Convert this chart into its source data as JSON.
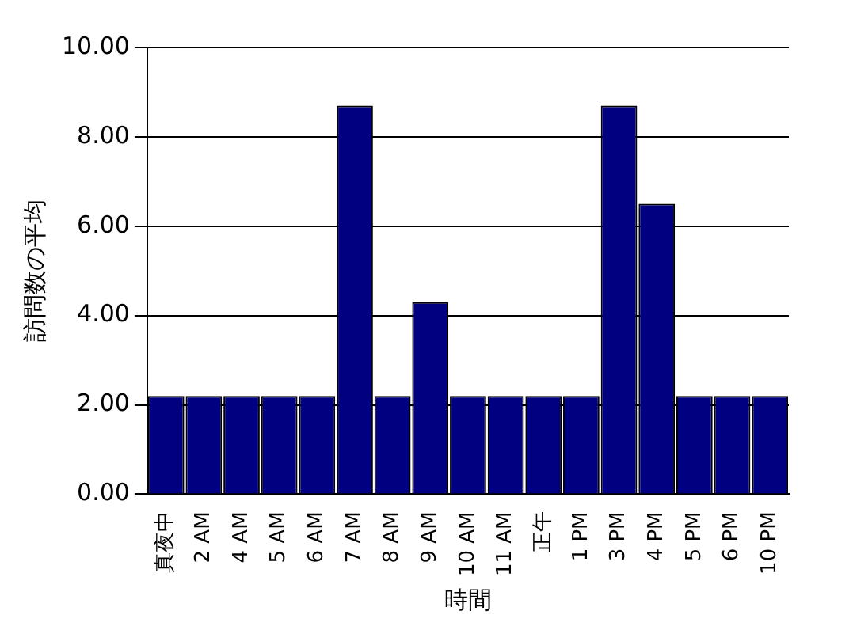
{
  "chart_data": {
    "type": "bar",
    "xlabel": "時間",
    "ylabel": "訪問数の平均",
    "categories": [
      "真夜中",
      "2 AM",
      "4 AM",
      "5 AM",
      "6 AM",
      "7 AM",
      "8 AM",
      "9 AM",
      "10 AM",
      "11 AM",
      "正午",
      "1 PM",
      "3 PM",
      "4 PM",
      "5 PM",
      "6 PM",
      "10 PM"
    ],
    "values": [
      2.2,
      2.2,
      2.2,
      2.2,
      2.2,
      8.7,
      2.2,
      4.3,
      2.2,
      2.2,
      2.2,
      2.2,
      8.7,
      6.5,
      2.2,
      2.2,
      2.2
    ],
    "color": "#000080",
    "ylim": [
      0,
      10
    ],
    "yticks": [
      {
        "value": 0,
        "label": "0.00"
      },
      {
        "value": 2,
        "label": "2.00"
      },
      {
        "value": 4,
        "label": "4.00"
      },
      {
        "value": 6,
        "label": "6.00"
      },
      {
        "value": 8,
        "label": "8.00"
      },
      {
        "value": 10,
        "label": "10.00"
      }
    ],
    "grid": "y",
    "legend": false
  }
}
